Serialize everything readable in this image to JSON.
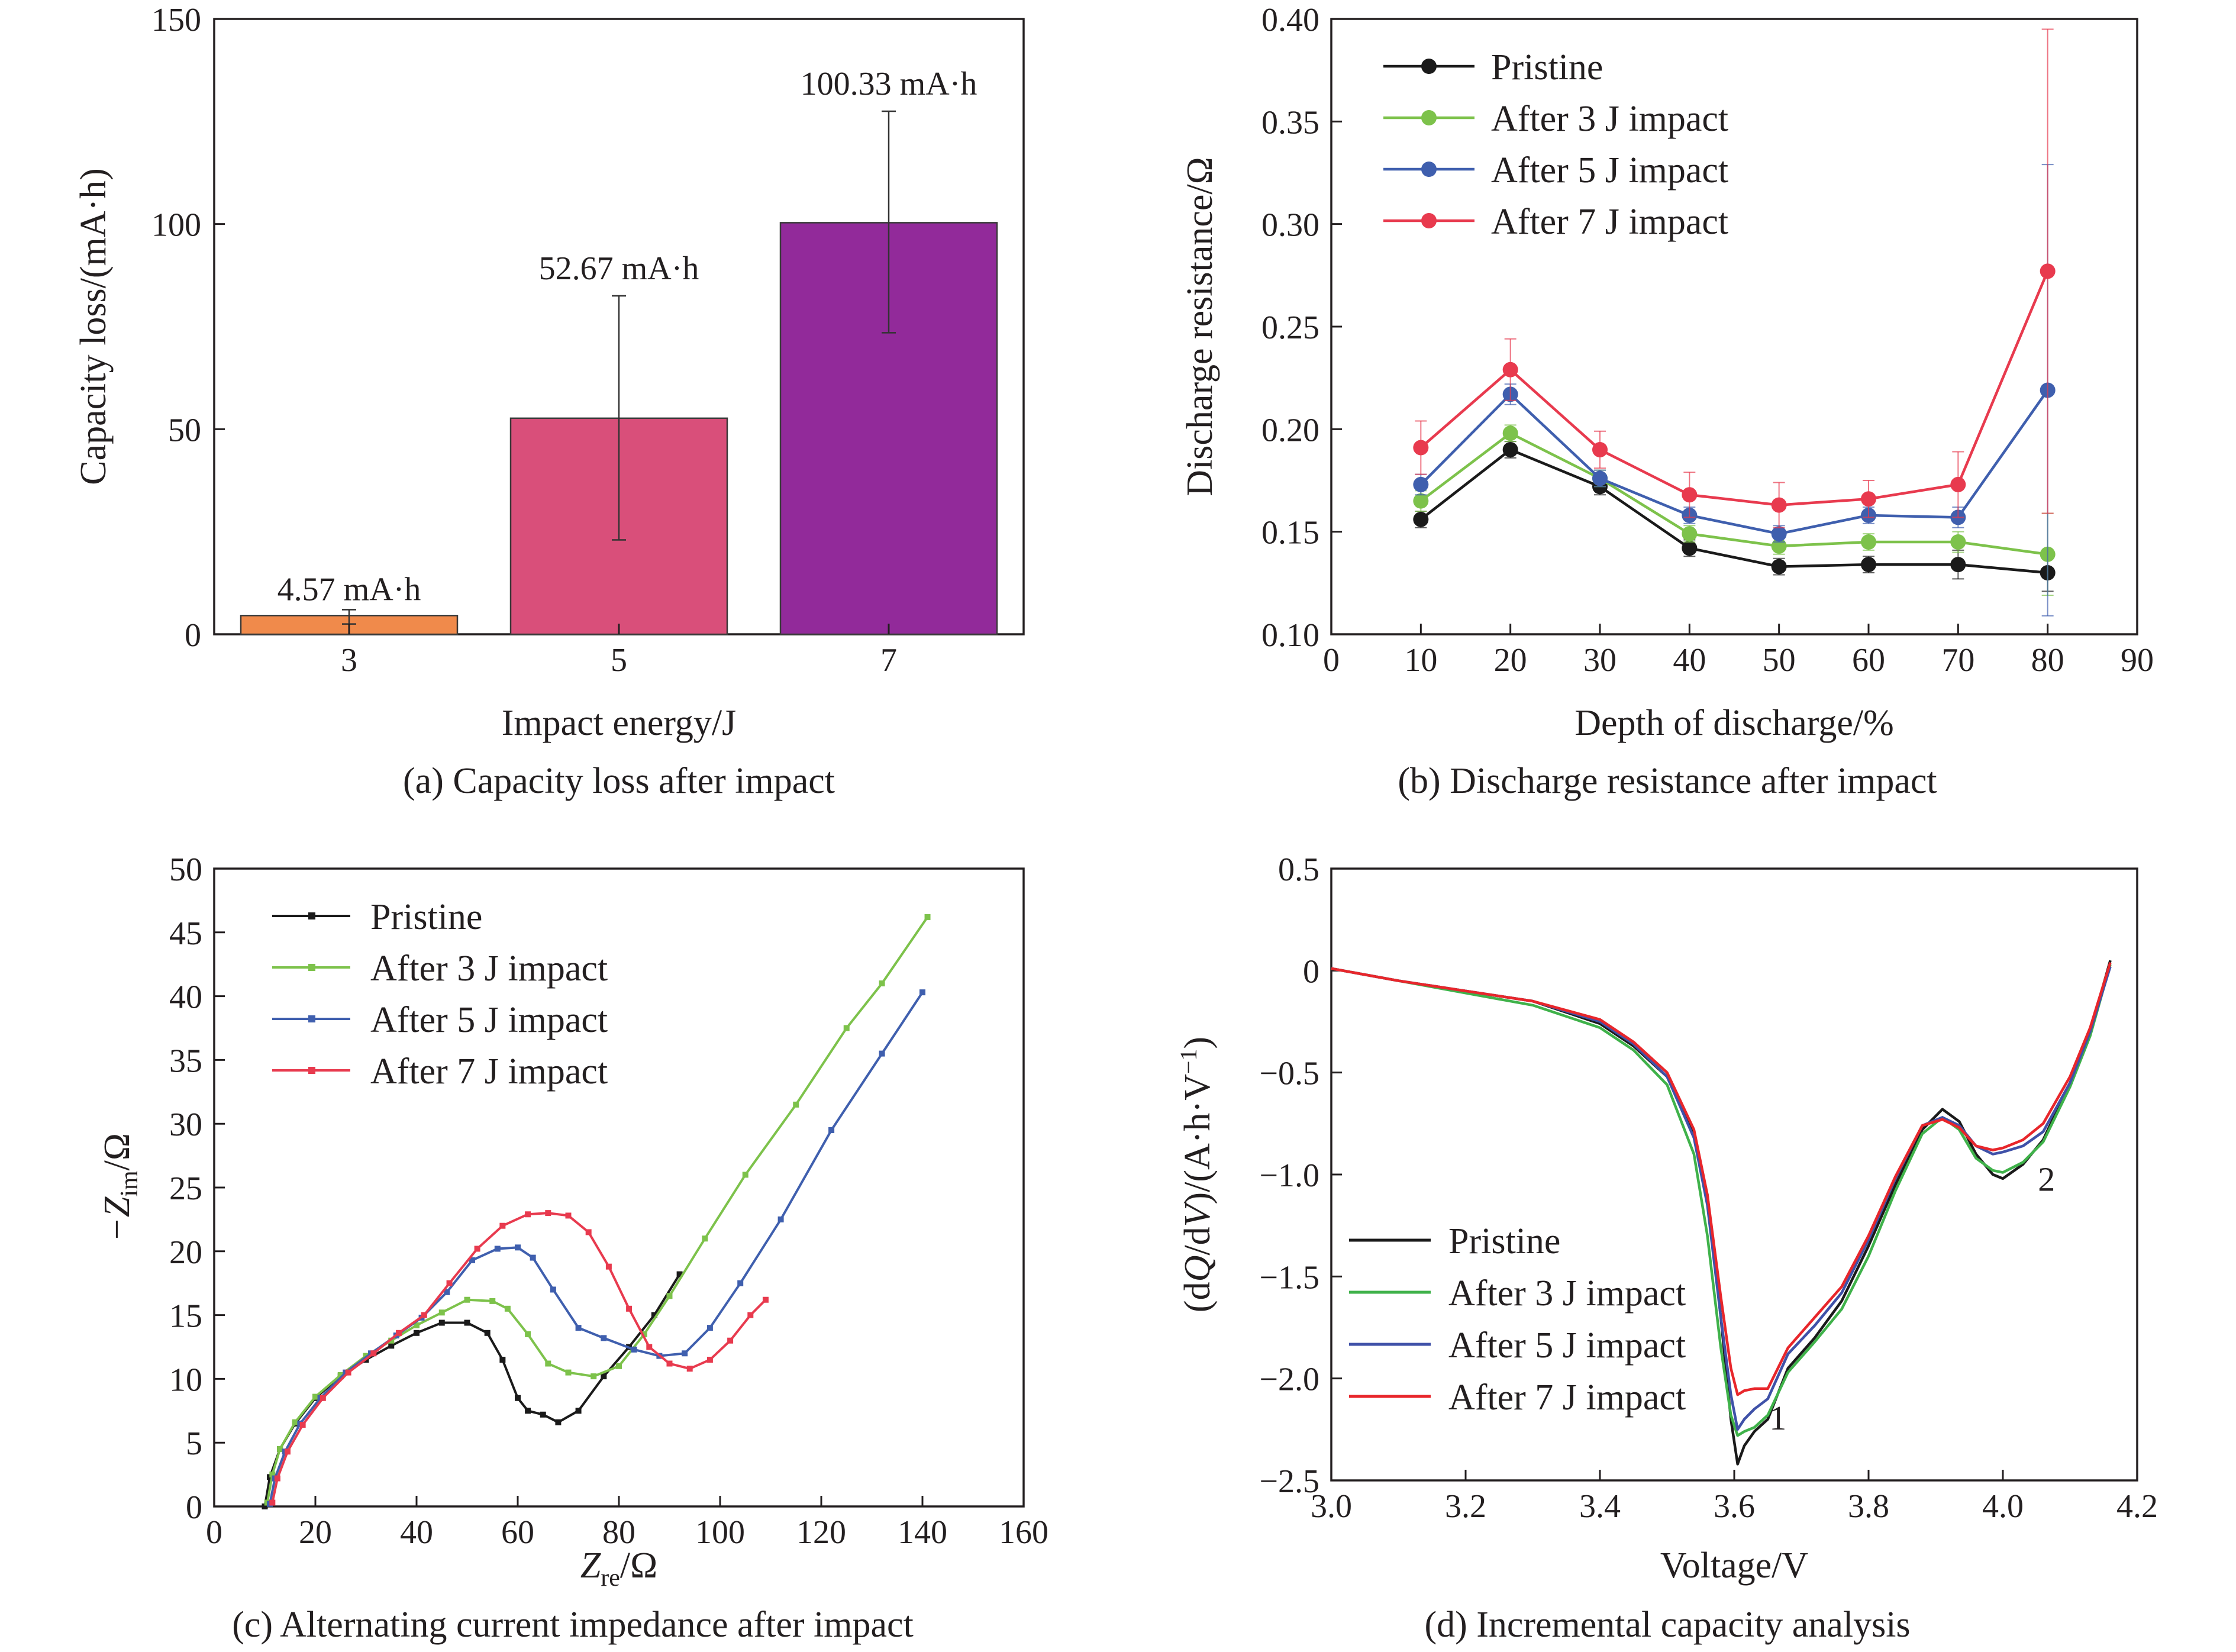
{
  "colors": {
    "pristine": "#1a1a1a",
    "impact3": "#7dc24b",
    "impact5": "#3f5fae",
    "impact7": "#e83a4e",
    "impact3_line_d": "#3fb24a",
    "impact7_line_d": "#e8262b",
    "bar3": "#f08a4b",
    "bar5": "#d94f7a",
    "bar7": "#922a9a"
  },
  "chart_data": [
    {
      "id": "a",
      "type": "bar",
      "caption": "(a) Capacity loss after impact",
      "xlabel": "Impact energy/J",
      "ylabel": "Capacity loss/(mA·h)",
      "categories": [
        "3",
        "5",
        "7"
      ],
      "values": [
        4.57,
        52.67,
        100.33
      ],
      "errors": [
        [
          2.5,
          6.0
        ],
        [
          23,
          82.5
        ],
        [
          73.5,
          127.5
        ]
      ],
      "value_labels": [
        "4.57 mA·h",
        "52.67 mA·h",
        "100.33 mA·h"
      ],
      "bar_colors": [
        "#f08a4b",
        "#d94f7a",
        "#922a9a"
      ],
      "ylim": [
        0,
        150
      ],
      "yticks": [
        "0",
        "50",
        "100",
        "150"
      ]
    },
    {
      "id": "b",
      "type": "line",
      "caption": "(b) Discharge resistance after impact",
      "xlabel": "Depth of discharge/%",
      "ylabel": "Discharge resistance/Ω",
      "xlim": [
        0,
        90
      ],
      "ylim": [
        0.1,
        0.4
      ],
      "xticks": [
        "0",
        "10",
        "20",
        "30",
        "40",
        "50",
        "60",
        "70",
        "80",
        "90"
      ],
      "yticks": [
        "0.10",
        "0.15",
        "0.20",
        "0.25",
        "0.30",
        "0.35",
        "0.40"
      ],
      "x": [
        10,
        20,
        30,
        40,
        50,
        60,
        70,
        80
      ],
      "legend": "top-left",
      "series": [
        {
          "name": "Pristine",
          "color": "#1a1a1a",
          "values": [
            0.156,
            0.19,
            0.172,
            0.142,
            0.133,
            0.134,
            0.134,
            0.13
          ],
          "err": [
            0.004,
            0.004,
            0.004,
            0.004,
            0.004,
            0.004,
            0.007,
            0.009
          ]
        },
        {
          "name": "After 3 J impact",
          "color": "#7dc24b",
          "values": [
            0.165,
            0.198,
            0.176,
            0.149,
            0.143,
            0.145,
            0.145,
            0.139
          ],
          "err": [
            0.005,
            0.004,
            0.004,
            0.004,
            0.004,
            0.004,
            0.005,
            0.02
          ]
        },
        {
          "name": "After 5 J impact",
          "color": "#3f5fae",
          "values": [
            0.173,
            0.217,
            0.176,
            0.158,
            0.149,
            0.158,
            0.157,
            0.219
          ],
          "err": [
            0.005,
            0.005,
            0.004,
            0.004,
            0.004,
            0.004,
            0.005,
            0.11
          ]
        },
        {
          "name": "After 7 J impact",
          "color": "#e83a4e",
          "values": [
            0.191,
            0.229,
            0.19,
            0.168,
            0.163,
            0.166,
            0.173,
            0.277
          ],
          "err": [
            0.013,
            0.015,
            0.009,
            0.011,
            0.011,
            0.009,
            0.016,
            0.118
          ]
        }
      ]
    },
    {
      "id": "c",
      "type": "line",
      "caption": "(c) Alternating current impedance after impact",
      "xlabel_main": "Z",
      "xlabel_sub": "re",
      "xlabel_unit": "/Ω",
      "ylabel_main": "−Z",
      "ylabel_sub": "im",
      "ylabel_unit": "/Ω",
      "xlim": [
        0,
        160
      ],
      "ylim": [
        0,
        50
      ],
      "xticks": [
        "0",
        "20",
        "40",
        "60",
        "80",
        "100",
        "120",
        "140",
        "160"
      ],
      "yticks": [
        "0",
        "5",
        "10",
        "15",
        "20",
        "25",
        "30",
        "35",
        "40",
        "45",
        "50"
      ],
      "legend": "top-left",
      "series": [
        {
          "name": "Pristine",
          "color": "#1a1a1a",
          "x": [
            10,
            11,
            13,
            16,
            20,
            25,
            30,
            35,
            40,
            45,
            50,
            54,
            57,
            60,
            62,
            65,
            68,
            72,
            77,
            82,
            87,
            92
          ],
          "y": [
            0,
            2.3,
            4.5,
            6.5,
            8.5,
            10.2,
            11.5,
            12.6,
            13.6,
            14.4,
            14.4,
            13.6,
            11.5,
            8.5,
            7.5,
            7.2,
            6.6,
            7.5,
            10.2,
            12.5,
            15.0,
            18.2
          ]
        },
        {
          "name": "After 3 J impact",
          "color": "#7dc24b",
          "x": [
            10.5,
            11.5,
            13,
            16,
            20,
            25,
            30,
            35,
            40,
            45,
            50,
            55,
            58,
            62,
            66,
            70,
            75,
            80,
            85,
            90,
            97,
            105,
            115,
            125,
            132,
            141
          ],
          "y": [
            0.3,
            2.5,
            4.5,
            6.6,
            8.6,
            10.3,
            11.8,
            13.0,
            14.2,
            15.2,
            16.2,
            16.1,
            15.5,
            13.5,
            11.2,
            10.5,
            10.2,
            11.0,
            13.5,
            16.5,
            21.0,
            26.0,
            31.5,
            37.5,
            41.0,
            46.2
          ]
        },
        {
          "name": "After 5 J impact",
          "color": "#3f5fae",
          "x": [
            11,
            12,
            14,
            17,
            21,
            26,
            31,
            36,
            41,
            46,
            51,
            56,
            60,
            63,
            67,
            72,
            77,
            83,
            88,
            93,
            98,
            104,
            112,
            122,
            132,
            140
          ],
          "y": [
            0.2,
            2.2,
            4.3,
            6.5,
            8.5,
            10.5,
            12.0,
            13.4,
            14.8,
            16.8,
            19.3,
            20.2,
            20.3,
            19.5,
            17.0,
            14.0,
            13.2,
            12.3,
            11.8,
            12.0,
            14.0,
            17.5,
            22.5,
            29.5,
            35.5,
            40.3
          ]
        },
        {
          "name": "After 7 J impact",
          "color": "#e83a4e",
          "x": [
            11.5,
            12.5,
            14.5,
            17.5,
            21.5,
            26.5,
            31.5,
            36.5,
            41.5,
            46.5,
            52,
            57,
            62,
            66,
            70,
            74,
            78,
            82,
            86,
            90,
            94,
            98,
            102,
            106,
            109
          ],
          "y": [
            0.3,
            2.2,
            4.3,
            6.4,
            8.5,
            10.5,
            12.0,
            13.6,
            15.0,
            17.5,
            20.2,
            22.0,
            22.9,
            23.0,
            22.8,
            21.5,
            18.8,
            15.5,
            12.5,
            11.2,
            10.8,
            11.5,
            13.0,
            15.0,
            16.2
          ]
        }
      ]
    },
    {
      "id": "d",
      "type": "line",
      "caption": "(d) Incremental capacity analysis",
      "xlabel": "Voltage/V",
      "ylabel_parts": [
        "(d",
        "Q",
        "/d",
        "V",
        ")/(A·h·V",
        "−1",
        ")"
      ],
      "xlim": [
        3.0,
        4.2
      ],
      "ylim": [
        -2.5,
        0.5
      ],
      "xticks": [
        "3.0",
        "3.2",
        "3.4",
        "3.6",
        "3.8",
        "4.0",
        "4.2"
      ],
      "yticks": [
        "−2.5",
        "−2.0",
        "−1.5",
        "−1.0",
        "−0.5",
        "0",
        "0.5"
      ],
      "legend": "bottom-left",
      "annotations": [
        "1",
        "2"
      ],
      "series": [
        {
          "name": "Pristine",
          "color": "#1a1a1a",
          "x": [
            3.0,
            3.1,
            3.2,
            3.3,
            3.4,
            3.45,
            3.5,
            3.54,
            3.56,
            3.58,
            3.595,
            3.605,
            3.615,
            3.63,
            3.65,
            3.68,
            3.72,
            3.76,
            3.8,
            3.84,
            3.88,
            3.91,
            3.935,
            3.96,
            3.985,
            4.0,
            4.03,
            4.06,
            4.1,
            4.13,
            4.16
          ],
          "y": [
            0.01,
            -0.05,
            -0.1,
            -0.15,
            -0.26,
            -0.37,
            -0.52,
            -0.8,
            -1.1,
            -1.7,
            -2.2,
            -2.42,
            -2.33,
            -2.26,
            -2.2,
            -1.95,
            -1.8,
            -1.62,
            -1.35,
            -1.05,
            -0.78,
            -0.68,
            -0.74,
            -0.9,
            -1.0,
            -1.02,
            -0.95,
            -0.83,
            -0.55,
            -0.3,
            0.05
          ]
        },
        {
          "name": "After 3 J impact",
          "color": "#3fb24a",
          "x": [
            3.0,
            3.1,
            3.2,
            3.3,
            3.4,
            3.45,
            3.5,
            3.54,
            3.56,
            3.58,
            3.595,
            3.605,
            3.615,
            3.63,
            3.65,
            3.68,
            3.72,
            3.76,
            3.8,
            3.84,
            3.88,
            3.91,
            3.935,
            3.96,
            3.985,
            4.0,
            4.03,
            4.06,
            4.1,
            4.13,
            4.16
          ],
          "y": [
            0.01,
            -0.05,
            -0.11,
            -0.17,
            -0.28,
            -0.39,
            -0.56,
            -0.9,
            -1.3,
            -1.85,
            -2.18,
            -2.28,
            -2.26,
            -2.24,
            -2.18,
            -1.97,
            -1.82,
            -1.66,
            -1.4,
            -1.08,
            -0.8,
            -0.72,
            -0.78,
            -0.92,
            -0.98,
            -0.99,
            -0.94,
            -0.84,
            -0.57,
            -0.32,
            0.03
          ]
        },
        {
          "name": "After 5 J impact",
          "color": "#3f51a8",
          "x": [
            3.0,
            3.1,
            3.2,
            3.3,
            3.4,
            3.45,
            3.5,
            3.54,
            3.56,
            3.58,
            3.595,
            3.605,
            3.615,
            3.63,
            3.65,
            3.68,
            3.72,
            3.76,
            3.8,
            3.84,
            3.88,
            3.91,
            3.935,
            3.96,
            3.985,
            4.0,
            4.03,
            4.06,
            4.1,
            4.13,
            4.16
          ],
          "y": [
            0.01,
            -0.05,
            -0.1,
            -0.15,
            -0.25,
            -0.36,
            -0.52,
            -0.82,
            -1.15,
            -1.7,
            -2.08,
            -2.25,
            -2.2,
            -2.15,
            -2.1,
            -1.88,
            -1.74,
            -1.58,
            -1.32,
            -1.02,
            -0.76,
            -0.72,
            -0.76,
            -0.86,
            -0.9,
            -0.89,
            -0.86,
            -0.79,
            -0.55,
            -0.3,
            0.02
          ]
        },
        {
          "name": "After 7 J impact",
          "color": "#e8262b",
          "x": [
            3.0,
            3.1,
            3.2,
            3.3,
            3.4,
            3.45,
            3.5,
            3.54,
            3.56,
            3.58,
            3.595,
            3.605,
            3.615,
            3.63,
            3.65,
            3.68,
            3.72,
            3.76,
            3.8,
            3.84,
            3.88,
            3.91,
            3.935,
            3.96,
            3.985,
            4.0,
            4.03,
            4.06,
            4.1,
            4.13,
            4.16
          ],
          "y": [
            0.01,
            -0.05,
            -0.1,
            -0.15,
            -0.24,
            -0.35,
            -0.5,
            -0.78,
            -1.1,
            -1.6,
            -1.95,
            -2.08,
            -2.06,
            -2.05,
            -2.05,
            -1.85,
            -1.7,
            -1.55,
            -1.3,
            -1.01,
            -0.76,
            -0.73,
            -0.77,
            -0.86,
            -0.88,
            -0.87,
            -0.83,
            -0.75,
            -0.52,
            -0.28,
            0.04
          ]
        }
      ]
    }
  ]
}
